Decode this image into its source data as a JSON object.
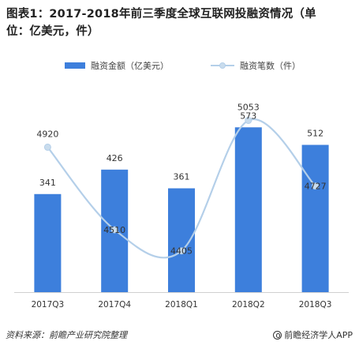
{
  "title": {
    "line1": "图表1：2017-2018年前三季度全球互联网投融资情况（单",
    "line2": "位：亿美元，件）"
  },
  "colors": {
    "bar": "#3d7fdc",
    "line": "#b4cfe9",
    "marker": "#c9dced",
    "axis": "#d0d0d0",
    "text": "#333333"
  },
  "chart_data": {
    "type": "bar",
    "categories": [
      "2017Q3",
      "2017Q4",
      "2018Q1",
      "2018Q2",
      "2018Q3"
    ],
    "series": [
      {
        "name": "融资金额（亿美元）",
        "type": "bar",
        "axis": "left",
        "values": [
          341,
          426,
          361,
          573,
          512
        ],
        "labels": [
          "341",
          "426",
          "361",
          "573",
          "512"
        ]
      },
      {
        "name": "融资笔数（件）",
        "type": "line",
        "axis": "right",
        "smooth": true,
        "values": [
          4920,
          4510,
          4405,
          5053,
          4727
        ],
        "labels": [
          "4920",
          "4510",
          "4405",
          "5053",
          "4727"
        ]
      }
    ],
    "ylim_left": [
      0,
      700
    ],
    "ylim_right": [
      4200,
      5200
    ],
    "grid": false,
    "legend_position": "top"
  },
  "footer": {
    "source": "资料来源：前瞻产业研究院整理",
    "brand": "前瞻经济学人APP"
  }
}
